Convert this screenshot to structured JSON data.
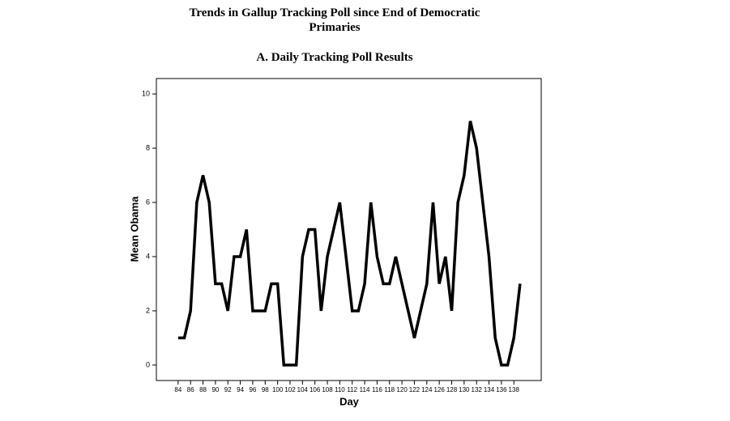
{
  "chart_data": {
    "type": "line",
    "title": "Trends in Gallup Tracking Poll since End of Democratic Primaries",
    "subtitle": "A. Daily Tracking Poll Results",
    "x_label": "Day",
    "y_label": "Mean Obama",
    "x": [
      84,
      85,
      86,
      87,
      88,
      89,
      90,
      91,
      92,
      93,
      94,
      95,
      96,
      97,
      98,
      99,
      100,
      101,
      102,
      103,
      104,
      105,
      106,
      107,
      108,
      109,
      110,
      111,
      112,
      113,
      114,
      115,
      116,
      117,
      118,
      119,
      120,
      121,
      122,
      123,
      124,
      125,
      126,
      127,
      128,
      129,
      130,
      131,
      132,
      133,
      134,
      135,
      136,
      137,
      138,
      139
    ],
    "values": [
      1,
      1,
      2,
      6,
      7,
      6,
      3,
      3,
      2,
      4,
      4,
      5,
      2,
      2,
      2,
      3,
      3,
      0,
      0,
      0,
      4,
      5,
      5,
      2,
      4,
      5,
      6,
      4,
      2,
      2,
      3,
      6,
      4,
      3,
      3,
      4,
      3,
      2,
      1,
      2,
      3,
      6,
      3,
      4,
      2,
      6,
      7,
      9,
      8,
      6,
      4,
      1,
      0,
      0,
      1,
      3
    ],
    "color": "#000000",
    "xlim": [
      80.5,
      142.4
    ],
    "ylim": [
      -0.57,
      10.57
    ],
    "xticks": [
      84,
      86,
      88,
      90,
      92,
      94,
      96,
      98,
      100,
      102,
      104,
      106,
      108,
      110,
      112,
      114,
      116,
      118,
      120,
      122,
      124,
      126,
      128,
      130,
      132,
      134,
      136,
      138
    ],
    "yticks": [
      0,
      2,
      4,
      6,
      8,
      10
    ]
  }
}
